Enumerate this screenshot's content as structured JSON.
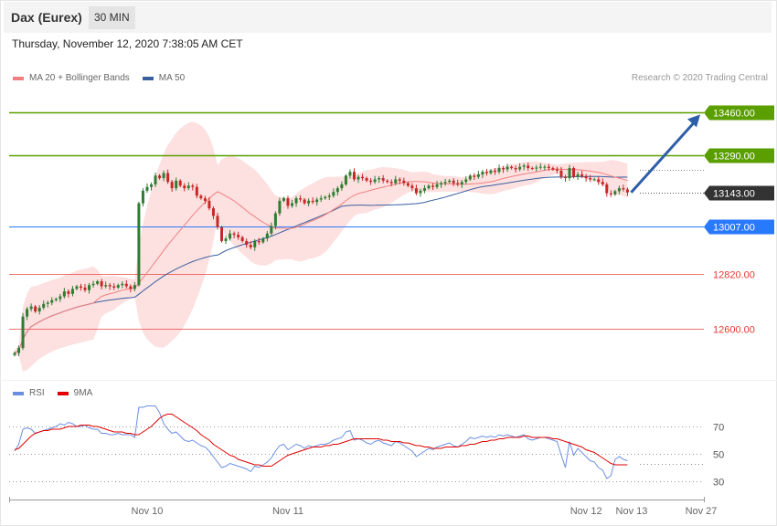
{
  "header": {
    "title": "Dax (Eurex)",
    "timeframe": "30 MIN",
    "datetime": "Thursday, November 12, 2020 7:38:05 AM CET",
    "credit": "Research © 2020 Trading Central"
  },
  "legend": {
    "ma20": "MA 20 + Bollinger Bands",
    "ma50": "MA 50",
    "rsi": "RSI",
    "ma9": "9MA"
  },
  "colors": {
    "up": "#2e7d32",
    "down": "#c62828",
    "ma20": "#f08080",
    "ma50": "#3a5f9e",
    "bollinger": "#fde0e0",
    "resistance": "#5a9e00",
    "pivot": "#2979ff",
    "support": "#e53935",
    "current": "#333333",
    "arrow": "#2e5ea8",
    "rsi": "#6b8fe0",
    "ma9": "#e00000"
  },
  "chart_data": [
    {
      "type": "candlestick",
      "ylim": [
        12420,
        13545
      ],
      "levels": [
        {
          "value": 13460,
          "label": "13460.00",
          "kind": "resistance"
        },
        {
          "value": 13290,
          "label": "13290.00",
          "kind": "resistance"
        },
        {
          "value": 13143,
          "label": "13143.00",
          "kind": "current"
        },
        {
          "value": 13007,
          "label": "13007.00",
          "kind": "pivot"
        },
        {
          "value": 12820,
          "label": "12820.00",
          "kind": "support"
        },
        {
          "value": 12600,
          "label": "12600.00",
          "kind": "support"
        }
      ],
      "close": [
        12505,
        12525,
        12650,
        12680,
        12690,
        12670,
        12685,
        12700,
        12705,
        12715,
        12720,
        12730,
        12750,
        12740,
        12760,
        12770,
        12765,
        12755,
        12775,
        12780,
        12790,
        12770,
        12775,
        12770,
        12765,
        12775,
        12780,
        12770,
        12760,
        12775,
        13100,
        13150,
        13165,
        13175,
        13210,
        13200,
        13220,
        13185,
        13160,
        13190,
        13170,
        13160,
        13170,
        13165,
        13130,
        13120,
        13110,
        13080,
        13050,
        13005,
        12950,
        12960,
        12980,
        12975,
        12965,
        12950,
        12935,
        12925,
        12950,
        12945,
        12960,
        12980,
        13010,
        13060,
        13110,
        13120,
        13090,
        13100,
        13120,
        13115,
        13100,
        13110,
        13105,
        13115,
        13120,
        13125,
        13130,
        13145,
        13160,
        13175,
        13210,
        13225,
        13195,
        13205,
        13200,
        13190,
        13185,
        13195,
        13200,
        13190,
        13185,
        13180,
        13195,
        13190,
        13180,
        13170,
        13160,
        13140,
        13150,
        13160,
        13170,
        13165,
        13175,
        13180,
        13185,
        13190,
        13180,
        13175,
        13185,
        13195,
        13210,
        13205,
        13215,
        13225,
        13220,
        13230,
        13225,
        13240,
        13235,
        13245,
        13240,
        13235,
        13245,
        13250,
        13240,
        13238,
        13242,
        13245,
        13245,
        13240,
        13235,
        13230,
        13205,
        13200,
        13240,
        13205,
        13215,
        13208,
        13200,
        13195,
        13195,
        13185,
        13175,
        13140,
        13135,
        13148,
        13160,
        13155,
        13143
      ]
    },
    {
      "type": "line",
      "title": "RSI",
      "ylim": [
        18,
        88
      ],
      "yticks": [
        70,
        50,
        30
      ],
      "series": [
        {
          "name": "RSI",
          "values": [
            52,
            57,
            68,
            69,
            68,
            65,
            66,
            67,
            68,
            69,
            70,
            72,
            71,
            73,
            72,
            70,
            70,
            71,
            69,
            68,
            68,
            65,
            65,
            64,
            64,
            65,
            64,
            64,
            64,
            62,
            84,
            84,
            85,
            85,
            85,
            80,
            72,
            68,
            65,
            66,
            63,
            60,
            59,
            60,
            58,
            56,
            55,
            52,
            48,
            44,
            40,
            41,
            43,
            42,
            41,
            40,
            39,
            37,
            41,
            40,
            42,
            44,
            47,
            52,
            56,
            57,
            53,
            55,
            57,
            56,
            54,
            56,
            55,
            56,
            57,
            57,
            58,
            60,
            61,
            62,
            66,
            67,
            60,
            61,
            60,
            58,
            57,
            59,
            60,
            58,
            57,
            56,
            59,
            58,
            56,
            54,
            52,
            48,
            50,
            52,
            54,
            53,
            55,
            56,
            57,
            58,
            56,
            55,
            57,
            59,
            62,
            61,
            62,
            63,
            62,
            63,
            62,
            64,
            63,
            64,
            63,
            62,
            63,
            64,
            61,
            60,
            61,
            62,
            62,
            61,
            60,
            59,
            49,
            40,
            59,
            49,
            54,
            51,
            48,
            45,
            44,
            40,
            38,
            32,
            34,
            46,
            48,
            46,
            45
          ]
        },
        {
          "name": "9MA",
          "values": [
            53,
            54,
            57,
            60,
            63,
            65,
            66,
            67,
            67,
            68,
            68,
            68,
            69,
            70,
            70,
            70,
            71,
            71,
            71,
            70,
            70,
            69,
            68,
            67,
            66,
            66,
            66,
            65,
            65,
            64,
            64,
            66,
            68,
            70,
            73,
            76,
            78,
            79,
            79,
            77,
            75,
            73,
            71,
            69,
            67,
            64,
            62,
            60,
            57,
            55,
            53,
            51,
            49,
            48,
            46,
            45,
            44,
            43,
            42,
            42,
            41,
            41,
            41,
            43,
            45,
            47,
            49,
            50,
            51,
            52,
            53,
            54,
            55,
            55,
            55,
            56,
            56,
            57,
            57,
            58,
            59,
            60,
            61,
            61,
            61,
            61,
            61,
            61,
            61,
            60,
            60,
            59,
            59,
            59,
            58,
            58,
            57,
            56,
            56,
            55,
            55,
            54,
            54,
            54,
            55,
            55,
            55,
            55,
            56,
            56,
            57,
            57,
            58,
            59,
            59,
            60,
            60,
            61,
            61,
            62,
            62,
            62,
            62,
            63,
            63,
            62,
            62,
            62,
            62,
            62,
            61,
            61,
            60,
            59,
            58,
            57,
            56,
            55,
            53,
            52,
            51,
            49,
            47,
            45,
            43,
            42,
            42,
            42,
            42
          ]
        }
      ]
    }
  ],
  "x_axis": {
    "ticks": [
      {
        "label": "Nov 10",
        "index": 32
      },
      {
        "label": "Nov 11",
        "index": 66
      },
      {
        "label": "Nov 12",
        "index": 138
      },
      {
        "label": "Nov 13",
        "index": 149
      }
    ],
    "end_label": "Nov 27"
  }
}
